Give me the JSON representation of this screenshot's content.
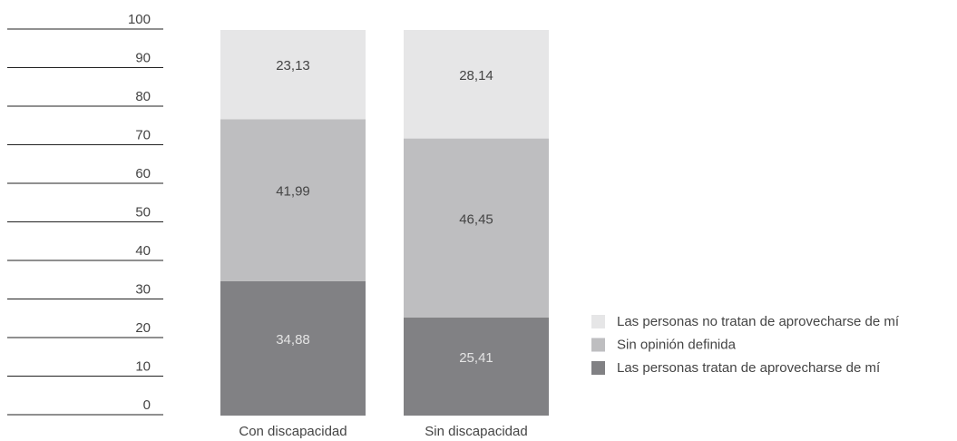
{
  "chart_data": {
    "type": "stacked_bar",
    "categories": [
      "Con discapacidad",
      "Sin discapacidad"
    ],
    "series": [
      {
        "name": "Las personas tratan de aprovecharse de mí",
        "color": "#818184",
        "values": [
          34.88,
          25.41
        ],
        "value_labels": [
          "34,88",
          "25,41"
        ]
      },
      {
        "name": "Sin opinión definida",
        "color": "#bebec0",
        "values": [
          41.99,
          46.45
        ],
        "value_labels": [
          "41,99",
          "46,45"
        ]
      },
      {
        "name": "Las personas no tratan de aprovecharse de mí",
        "color": "#e6e6e7",
        "values": [
          23.13,
          28.14
        ],
        "value_labels": [
          "23,13",
          "28,14"
        ]
      }
    ],
    "ylim": [
      0,
      100
    ],
    "yticks": [
      0,
      10,
      20,
      30,
      40,
      50,
      60,
      70,
      80,
      90,
      100
    ],
    "legend": "right"
  }
}
